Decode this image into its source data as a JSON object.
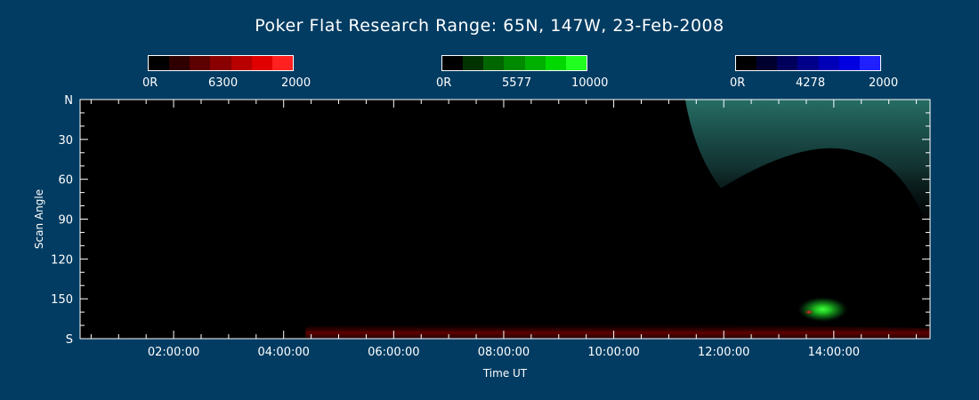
{
  "chart_data": {
    "type": "heatmap",
    "title": "Poker Flat Research Range: 65N, 147W, 23-Feb-2008",
    "xlabel": "Time UT",
    "ylabel": "Scan Angle",
    "x_ticks": [
      "02:00:00",
      "04:00:00",
      "06:00:00",
      "08:00:00",
      "10:00:00",
      "12:00:00",
      "14:00:00"
    ],
    "x_tick_hours": [
      2,
      4,
      6,
      8,
      10,
      12,
      14
    ],
    "xlim_hours": [
      0.3,
      15.75
    ],
    "y_ticks": [
      "N",
      "30",
      "60",
      "90",
      "120",
      "150",
      "S"
    ],
    "y_tick_values": [
      0,
      30,
      60,
      90,
      120,
      150,
      180
    ],
    "ylim": [
      0,
      180
    ],
    "colorbars": [
      {
        "wavelength": "6300",
        "min_label": "0R",
        "max_label": "2000",
        "colors": [
          "#000000",
          "#2e0000",
          "#5c0000",
          "#8a0000",
          "#b80000",
          "#e00000",
          "#ff2020"
        ]
      },
      {
        "wavelength": "5577",
        "min_label": "0R",
        "max_label": "10000",
        "colors": [
          "#000000",
          "#003300",
          "#006600",
          "#008a00",
          "#00b000",
          "#00d800",
          "#20ff20"
        ]
      },
      {
        "wavelength": "4278",
        "min_label": "0R",
        "max_label": "2000",
        "colors": [
          "#000000",
          "#00002e",
          "#00005c",
          "#00008a",
          "#0000b8",
          "#0000e0",
          "#2020ff"
        ]
      }
    ],
    "features": [
      {
        "name": "green-red-diffuse-arc",
        "color": "#2a6a60",
        "t_start": 11.3,
        "t_end": 15.75,
        "angle_start": 0,
        "angle_end": 40
      },
      {
        "name": "green-spot",
        "color": "#20ff20",
        "t": 13.8,
        "angle": 158
      },
      {
        "name": "red-spot",
        "color": "#ff2020",
        "t": 13.55,
        "angle": 160
      },
      {
        "name": "red-southern-band",
        "color": "#8a0000",
        "t_start": 4.4,
        "t_end": 15.75,
        "angle_start": 168,
        "angle_end": 180
      }
    ]
  }
}
